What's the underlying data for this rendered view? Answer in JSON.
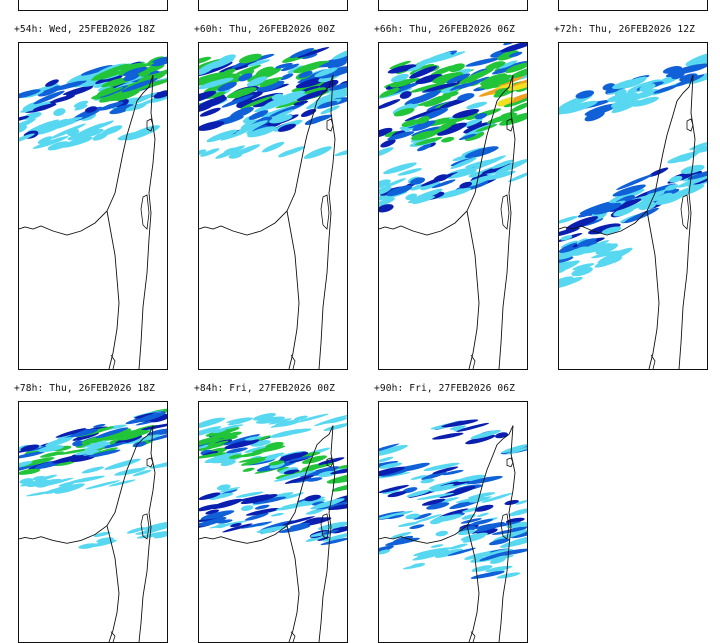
{
  "panels": [
    {
      "title": "+54h: Wed, 25FEB2026 18Z",
      "coverage": "north"
    },
    {
      "title": "+60h: Thu, 26FEB2026 00Z",
      "coverage": "north-heavy"
    },
    {
      "title": "+66h: Thu, 26FEB2026 06Z",
      "coverage": "central-heavy"
    },
    {
      "title": "+72h: Thu, 26FEB2026 12Z",
      "coverage": "split"
    },
    {
      "title": "+78h: Thu, 26FEB2026 18Z",
      "coverage": "north-band"
    },
    {
      "title": "+84h: Fri, 27FEB2026 00Z",
      "coverage": "central-band"
    },
    {
      "title": "+90h: Fri, 27FEB2026 06Z",
      "coverage": "south-scattered"
    }
  ],
  "colors": {
    "light": "#58d8f0",
    "medium": "#1060d8",
    "dark": "#0a1fb0",
    "green": "#22c43a",
    "yellow": "#f0e020",
    "orange": "#f0a020",
    "border": "#111111"
  }
}
